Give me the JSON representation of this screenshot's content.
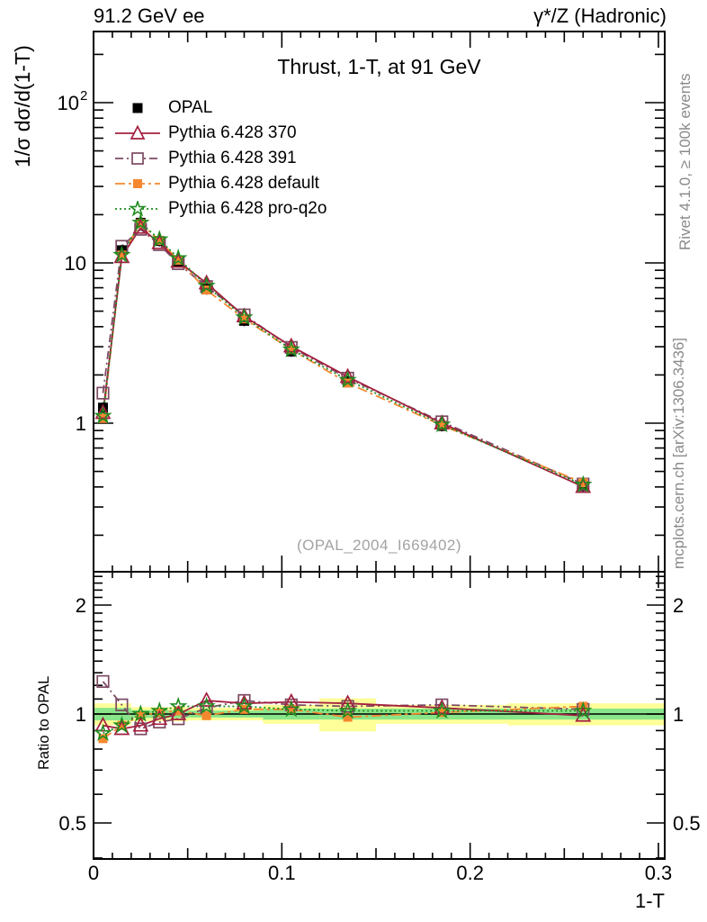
{
  "header": {
    "left": "91.2 GeV ee",
    "right": "γ*/Z (Hadronic)"
  },
  "title": "Thrust, 1-T, at 91 GeV",
  "watermark": "(OPAL_2004_I669402)",
  "side_notes": {
    "rivet": "Rivet 4.1.0, ≥ 100k events",
    "mcplots": "mcplots.cern.ch [arXiv:1306.3436]"
  },
  "axes": {
    "main_ylabel": "1/σ  dσ/d(1-T)",
    "ratio_ylabel": "Ratio to OPAL",
    "xlabel": "1-T"
  },
  "colors": {
    "data": "#000000",
    "pythia370": "#a3203f",
    "pythia391": "#7d4a63",
    "pythiaDefault": "#f5882f",
    "pythiaProQ2o": "#1f8b1f",
    "band_yellow": "#ffff99",
    "band_green": "#89e589"
  },
  "chart_data": {
    "type": "line",
    "title": "Thrust, 1-T, at 91 GeV",
    "xlabel": "1-T",
    "xlim": [
      0,
      0.3034
    ],
    "xticks": [
      0,
      0.1,
      0.2,
      0.3
    ],
    "x": [
      0.005,
      0.015,
      0.025,
      0.035,
      0.045,
      0.06,
      0.08,
      0.105,
      0.135,
      0.185,
      0.26
    ],
    "bin_edges": [
      0,
      0.01,
      0.02,
      0.03,
      0.04,
      0.05,
      0.07,
      0.09,
      0.12,
      0.15,
      0.22,
      0.3034
    ],
    "panels": [
      {
        "name": "main",
        "ylabel": "1/σ  dσ/d(1-T)",
        "yscale": "log",
        "ylim": [
          0.118,
          277
        ],
        "yticks": [
          1,
          10,
          100
        ]
      },
      {
        "name": "ratio",
        "ylabel": "Ratio to OPAL",
        "yscale": "log",
        "ylim": [
          0.398,
          2.47
        ],
        "yticks": [
          0.5,
          1,
          2
        ],
        "bands": [
          {
            "x0": 0.0,
            "x1": 0.01,
            "yellow": 0.07,
            "green": 0.04
          },
          {
            "x0": 0.01,
            "x1": 0.02,
            "yellow": 0.07,
            "green": 0.04
          },
          {
            "x0": 0.02,
            "x1": 0.03,
            "yellow": 0.045,
            "green": 0.025
          },
          {
            "x0": 0.03,
            "x1": 0.04,
            "yellow": 0.045,
            "green": 0.025
          },
          {
            "x0": 0.04,
            "x1": 0.05,
            "yellow": 0.045,
            "green": 0.025
          },
          {
            "x0": 0.05,
            "x1": 0.07,
            "yellow": 0.04,
            "green": 0.022
          },
          {
            "x0": 0.07,
            "x1": 0.09,
            "yellow": 0.04,
            "green": 0.022
          },
          {
            "x0": 0.09,
            "x1": 0.12,
            "yellow": 0.06,
            "green": 0.035
          },
          {
            "x0": 0.12,
            "x1": 0.15,
            "yellow": 0.105,
            "green": 0.035
          },
          {
            "x0": 0.15,
            "x1": 0.22,
            "yellow": 0.06,
            "green": 0.035
          },
          {
            "x0": 0.22,
            "x1": 0.3034,
            "yellow": 0.07,
            "green": 0.035
          }
        ]
      }
    ],
    "series": [
      {
        "name": "OPAL",
        "role": "data",
        "color": "#000000",
        "marker": "square-filled",
        "line": "none",
        "values": [
          1.25,
          12.0,
          17.8,
          13.7,
          10.2,
          6.85,
          4.35,
          2.8,
          1.82,
          0.96,
          0.405
        ],
        "ratio": [
          1,
          1,
          1,
          1,
          1,
          1,
          1,
          1,
          1,
          1,
          1
        ]
      },
      {
        "name": "Pythia 6.428 370",
        "color": "#a3203f",
        "marker": "triangle-open",
        "line": "solid",
        "values": [
          1.16,
          10.9,
          16.6,
          13.3,
          10.2,
          7.47,
          4.65,
          3.02,
          1.95,
          1.0,
          0.401
        ],
        "ratio": [
          0.93,
          0.91,
          0.93,
          0.97,
          1.0,
          1.09,
          1.07,
          1.08,
          1.07,
          1.04,
          0.99
        ]
      },
      {
        "name": "Pythia 6.428 391",
        "color": "#7d4a63",
        "marker": "square-open",
        "line": "dashdot",
        "values": [
          1.54,
          12.7,
          16.2,
          13.0,
          9.89,
          7.12,
          4.74,
          2.97,
          1.91,
          1.02,
          0.417
        ],
        "ratio": [
          1.23,
          1.06,
          0.91,
          0.95,
          0.97,
          1.04,
          1.09,
          1.06,
          1.05,
          1.06,
          1.03
        ]
      },
      {
        "name": "Pythia 6.428 default",
        "color": "#f5882f",
        "marker": "square-filled",
        "line": "longdashdot",
        "values": [
          1.07,
          11.2,
          17.6,
          13.8,
          10.4,
          6.78,
          4.48,
          2.88,
          1.78,
          0.97,
          0.425
        ],
        "ratio": [
          0.855,
          0.93,
          0.99,
          1.01,
          1.02,
          0.99,
          1.03,
          1.03,
          0.98,
          1.01,
          1.05
        ]
      },
      {
        "name": "Pythia 6.428 pro-q2o",
        "color": "#1f8b1f",
        "marker": "star-open",
        "line": "dotted",
        "values": [
          1.11,
          11.2,
          17.8,
          14.0,
          10.7,
          7.19,
          4.57,
          2.88,
          1.86,
          0.98,
          0.413
        ],
        "ratio": [
          0.885,
          0.93,
          1.0,
          1.02,
          1.05,
          1.05,
          1.05,
          1.03,
          1.02,
          1.02,
          1.02
        ]
      }
    ]
  }
}
